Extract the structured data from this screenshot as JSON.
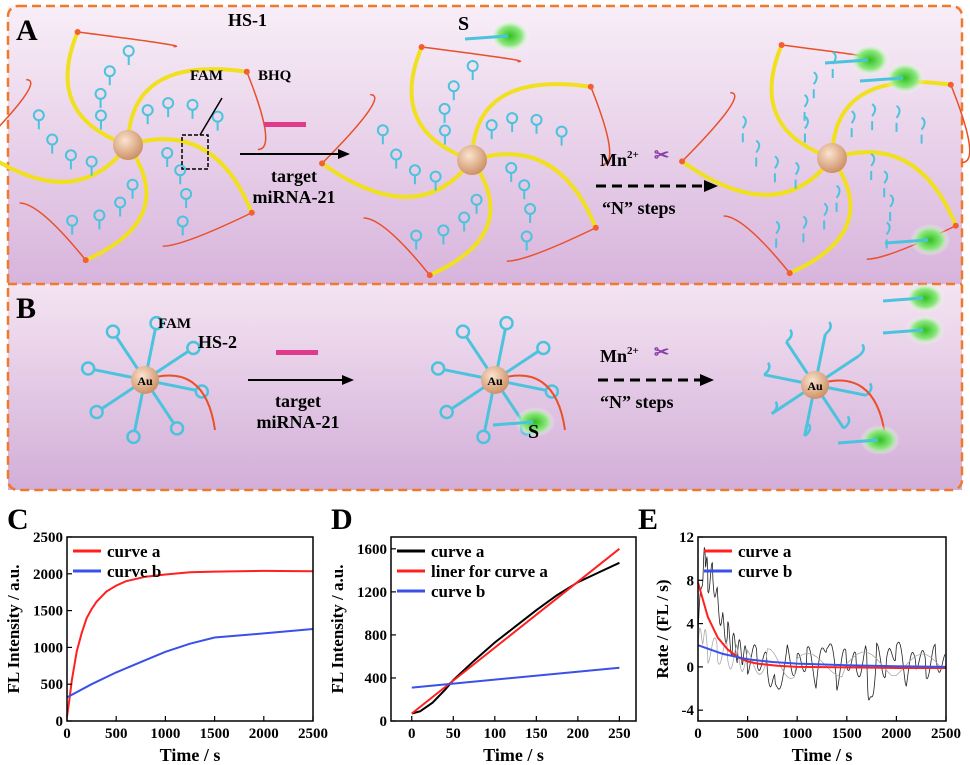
{
  "scheme": {
    "panel_a": {
      "letter": "A",
      "probe_label": "HS-1",
      "fam_label": "FAM",
      "bhq_label": "BHQ",
      "signal_label": "S",
      "arrow1_label_line1": "target",
      "arrow1_label_line2": "miRNA-21",
      "arrow2_label_ion": "Mn",
      "arrow2_label_charge": "2+",
      "arrow2_label_steps": "“N” steps"
    },
    "panel_b": {
      "letter": "B",
      "fam_label": "FAM",
      "probe_label": "HS-2",
      "gold_label": "Au",
      "signal_label": "S",
      "arrow1_label_line1": "target",
      "arrow1_label_line2": "miRNA-21",
      "arrow2_label_ion": "Mn",
      "arrow2_label_charge": "2+",
      "arrow2_label_steps": "“N” steps"
    },
    "colors": {
      "border": "#f07a2a",
      "background_top": "#f6e6f4",
      "background_bottom": "#d9b6dc",
      "hairpin": "#4cc3dc",
      "arm": "#f0e020",
      "linker": "#e8502a",
      "fluorescence": "#44d03a",
      "target": "#e03a8a",
      "core": "#e0a880"
    }
  },
  "chart_data": [
    {
      "panel": "C",
      "type": "line",
      "xlabel": "Time / s",
      "ylabel": "FL Intensity / a.u.",
      "xlim": [
        0,
        2500
      ],
      "ylim": [
        0,
        2500
      ],
      "xticks": [
        "0",
        "500",
        "1000",
        "1500",
        "2000",
        "2500"
      ],
      "yticks": [
        "0",
        "500",
        "1000",
        "1500",
        "2000",
        "2500"
      ],
      "legend": "top-left",
      "series": [
        {
          "name": "curve a",
          "color": "#ff2020",
          "x": [
            0,
            25,
            50,
            100,
            150,
            200,
            250,
            300,
            400,
            500,
            600,
            800,
            1000,
            1250,
            1500,
            2000,
            2500
          ],
          "y": [
            60,
            300,
            560,
            950,
            1200,
            1400,
            1520,
            1620,
            1760,
            1840,
            1900,
            1960,
            1990,
            2020,
            2030,
            2040,
            2035
          ]
        },
        {
          "name": "curve b",
          "color": "#3a50e8",
          "x": [
            0,
            250,
            500,
            750,
            1000,
            1250,
            1500,
            2000,
            2500
          ],
          "y": [
            320,
            500,
            660,
            800,
            940,
            1050,
            1135,
            1190,
            1250
          ]
        }
      ]
    },
    {
      "panel": "D",
      "type": "line",
      "xlabel": "Time / s",
      "ylabel": "FL Intensity / a.u.",
      "xlim": [
        -25,
        270
      ],
      "ylim": [
        0,
        1710
      ],
      "xticks": [
        "0",
        "50",
        "100",
        "150",
        "200",
        "250"
      ],
      "yticks": [
        "0",
        "400",
        "800",
        "1200",
        "1600"
      ],
      "legend": "top-left",
      "series": [
        {
          "name": "curve a",
          "color": "#000000",
          "x": [
            0,
            10,
            25,
            40,
            50,
            75,
            100,
            125,
            150,
            175,
            200,
            225,
            250
          ],
          "y": [
            70,
            90,
            170,
            290,
            380,
            560,
            730,
            880,
            1030,
            1170,
            1290,
            1380,
            1470
          ]
        },
        {
          "name": "liner for curve a",
          "color": "#ff2020",
          "x": [
            0,
            250
          ],
          "y": [
            70,
            1600
          ]
        },
        {
          "name": "curve b",
          "color": "#3a50e8",
          "x": [
            0,
            250
          ],
          "y": [
            310,
            495
          ]
        }
      ]
    },
    {
      "panel": "E",
      "type": "line",
      "xlabel": "Time / s",
      "ylabel": "Rate / (FL / s)",
      "xlim": [
        0,
        2500
      ],
      "ylim": [
        -5,
        12
      ],
      "xticks": [
        "0",
        "500",
        "1000",
        "1500",
        "2000",
        "2500"
      ],
      "yticks": [
        "-4",
        "0",
        "4",
        "8",
        "12"
      ],
      "legend": "top-left",
      "raw_traces": [
        {
          "color": "#222222",
          "x": [
            0,
            50,
            75,
            100,
            150,
            200,
            250,
            300,
            350,
            400,
            450,
            500,
            600,
            700,
            780,
            900,
            1000,
            1100,
            1200,
            1300,
            1400,
            1500,
            1600,
            1700,
            1730,
            1800,
            1900,
            2000,
            2100,
            2200,
            2300,
            2400,
            2500
          ],
          "y": [
            3,
            9,
            10.5,
            8,
            8.5,
            6,
            4,
            3,
            2,
            1.5,
            1,
            0.5,
            1,
            0,
            -2,
            1,
            0,
            1,
            -1,
            2.5,
            -1,
            1,
            0,
            1,
            -4,
            1,
            0,
            2,
            -1,
            1,
            0,
            1,
            0
          ]
        },
        {
          "color": "#aaaaaa",
          "x": [
            0,
            50,
            100,
            200,
            300,
            400,
            500,
            700,
            1000,
            1500,
            2000,
            2500
          ],
          "y": [
            2,
            3,
            1.5,
            1.5,
            1,
            1,
            0.5,
            0.5,
            0,
            0.3,
            0,
            0
          ]
        }
      ],
      "series": [
        {
          "name": "curve a",
          "color": "#ff2020",
          "x": [
            0,
            100,
            200,
            300,
            400,
            500,
            600,
            800,
            1000,
            1500,
            2000,
            2500
          ],
          "y": [
            7.8,
            4.6,
            2.7,
            1.6,
            0.9,
            0.5,
            0.3,
            0.1,
            0.0,
            -0.05,
            -0.1,
            -0.1
          ]
        },
        {
          "name": "curve b",
          "color": "#3a50e8",
          "x": [
            0,
            250,
            500,
            750,
            1000,
            1500,
            2000,
            2500
          ],
          "y": [
            2.0,
            1.2,
            0.7,
            0.45,
            0.3,
            0.15,
            0.05,
            0.0
          ]
        }
      ]
    }
  ]
}
